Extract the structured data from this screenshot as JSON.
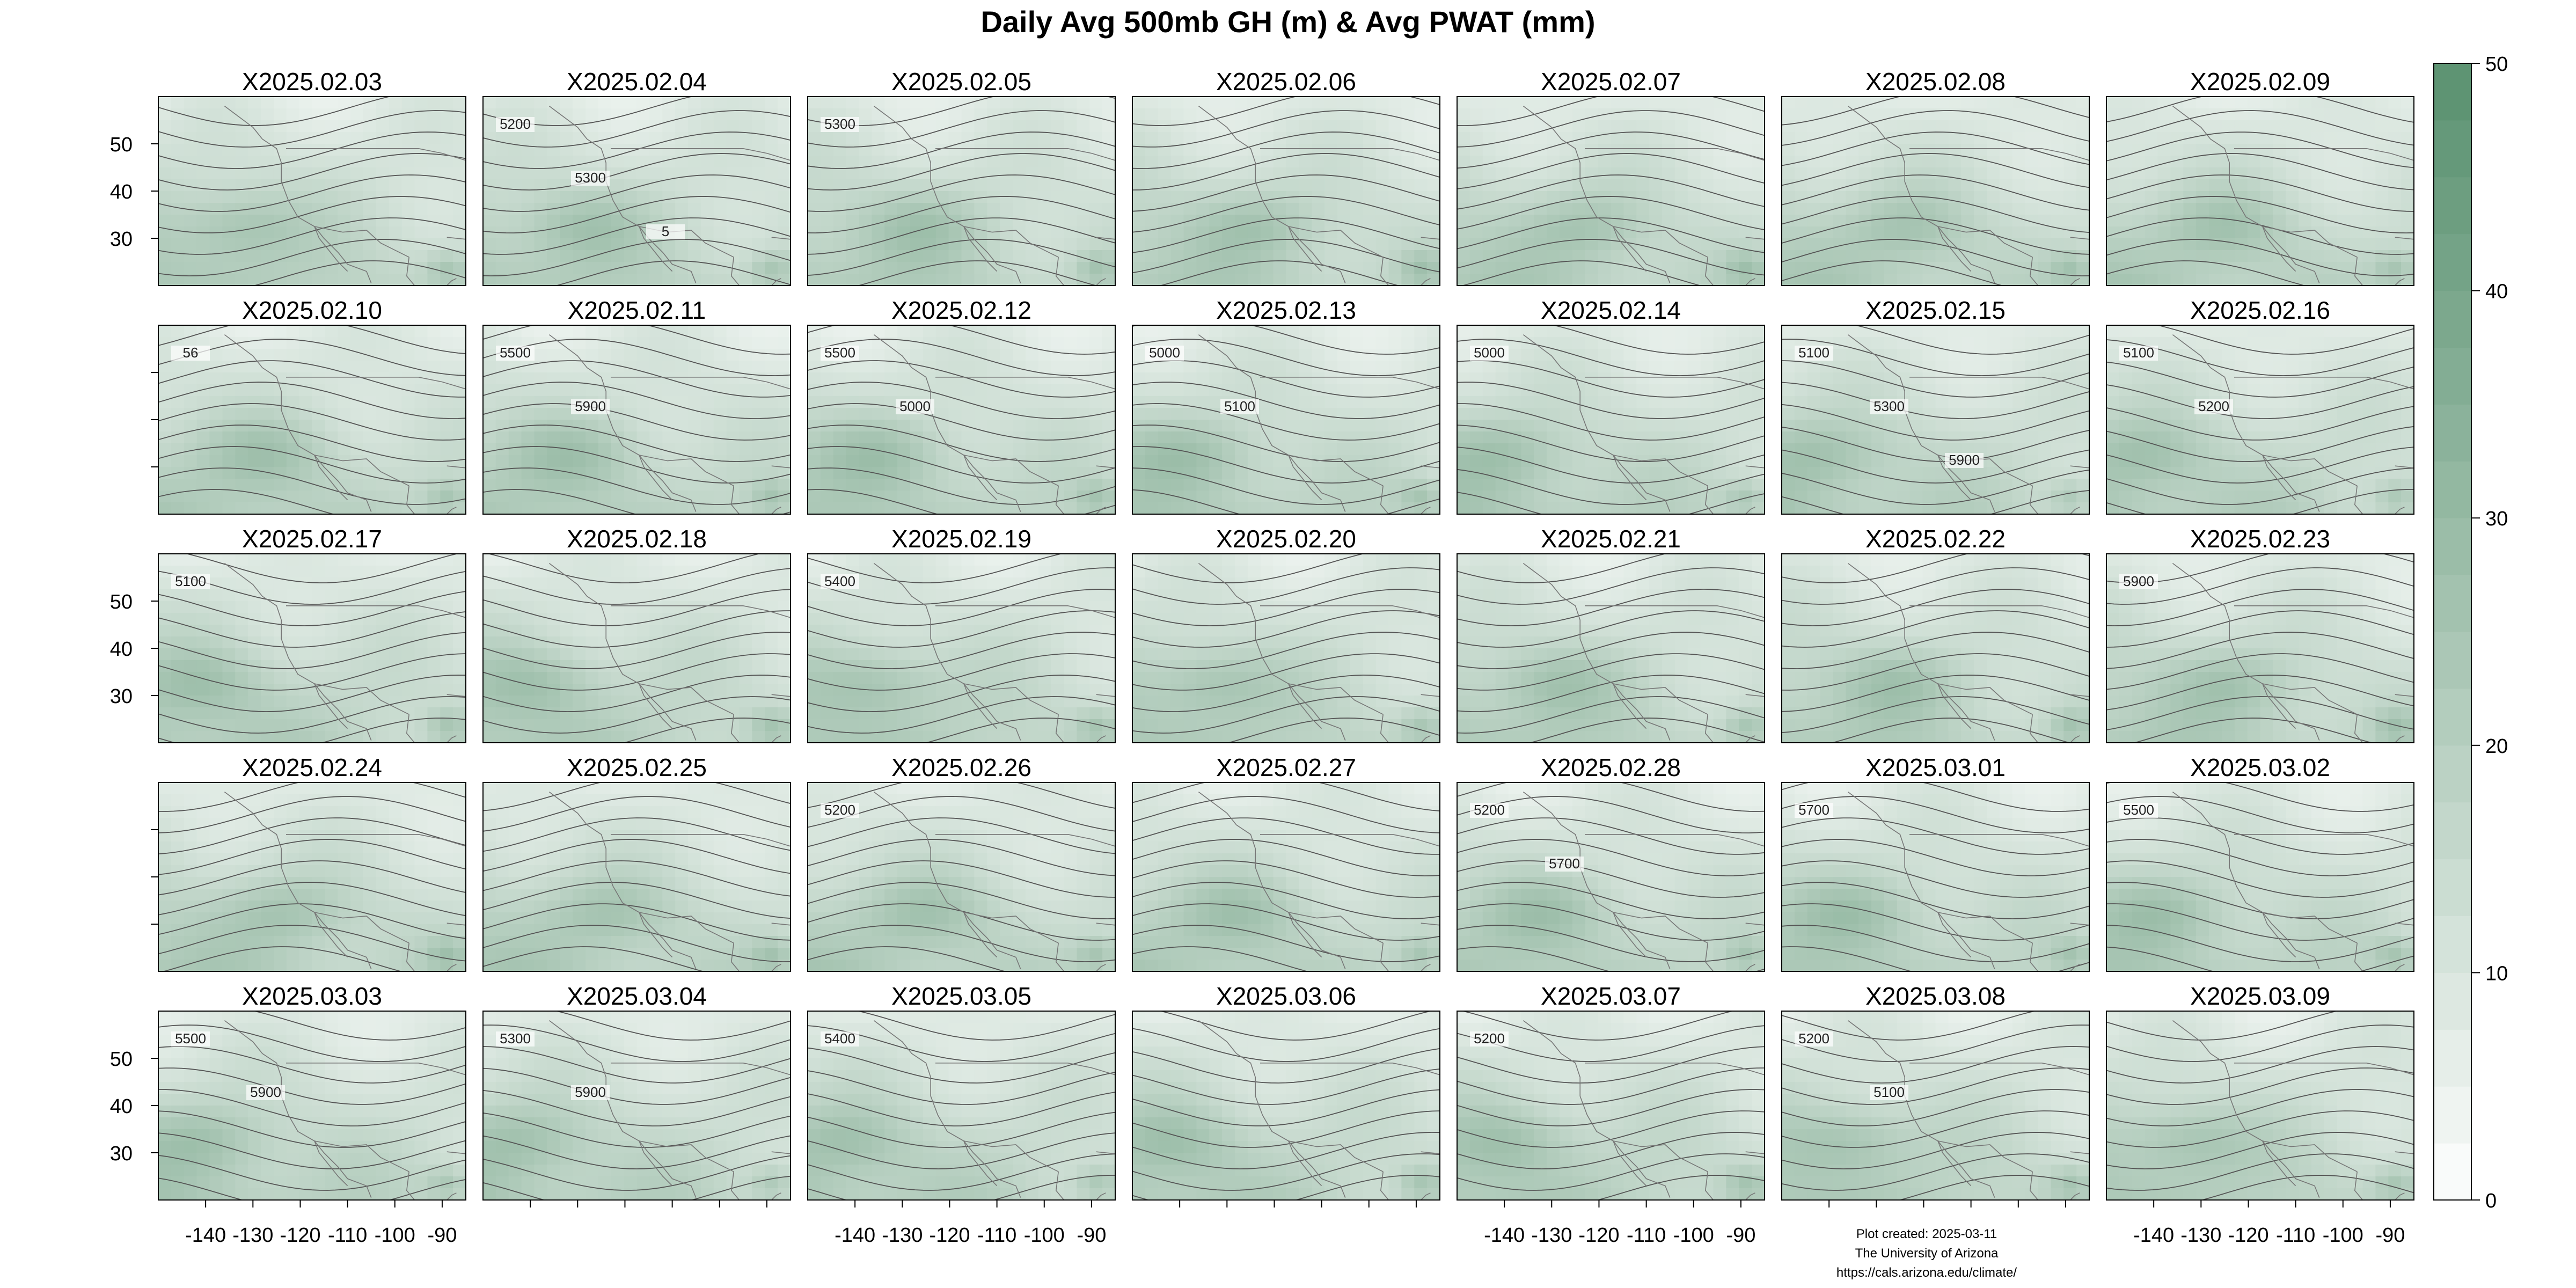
{
  "title": "Daily Avg 500mb GH (m) & Avg PWAT (mm)",
  "credits": [
    "Plot created: 2025-03-11",
    "The University of Arizona",
    "https://cals.arizona.edu/climate/"
  ],
  "chart_data": {
    "type": "heatmap",
    "layout": {
      "rows": 5,
      "cols": 7
    },
    "panels": [
      {
        "label": "X2025.02.03",
        "contour_labels": []
      },
      {
        "label": "X2025.02.04",
        "contour_labels": [
          "5200",
          "5300",
          "5"
        ]
      },
      {
        "label": "X2025.02.05",
        "contour_labels": [
          "5300"
        ]
      },
      {
        "label": "X2025.02.06",
        "contour_labels": []
      },
      {
        "label": "X2025.02.07",
        "contour_labels": []
      },
      {
        "label": "X2025.02.08",
        "contour_labels": []
      },
      {
        "label": "X2025.02.09",
        "contour_labels": []
      },
      {
        "label": "X2025.02.10",
        "contour_labels": [
          "56"
        ]
      },
      {
        "label": "X2025.02.11",
        "contour_labels": [
          "5500",
          "5900"
        ]
      },
      {
        "label": "X2025.02.12",
        "contour_labels": [
          "5500",
          "5000"
        ]
      },
      {
        "label": "X2025.02.13",
        "contour_labels": [
          "5000",
          "5100"
        ]
      },
      {
        "label": "X2025.02.14",
        "contour_labels": [
          "5000"
        ]
      },
      {
        "label": "X2025.02.15",
        "contour_labels": [
          "5100",
          "5300",
          "5900"
        ]
      },
      {
        "label": "X2025.02.16",
        "contour_labels": [
          "5100",
          "5200"
        ]
      },
      {
        "label": "X2025.02.17",
        "contour_labels": [
          "5100"
        ]
      },
      {
        "label": "X2025.02.18",
        "contour_labels": []
      },
      {
        "label": "X2025.02.19",
        "contour_labels": [
          "5400"
        ]
      },
      {
        "label": "X2025.02.20",
        "contour_labels": []
      },
      {
        "label": "X2025.02.21",
        "contour_labels": []
      },
      {
        "label": "X2025.02.22",
        "contour_labels": []
      },
      {
        "label": "X2025.02.23",
        "contour_labels": [
          "5900"
        ]
      },
      {
        "label": "X2025.02.24",
        "contour_labels": []
      },
      {
        "label": "X2025.02.25",
        "contour_labels": []
      },
      {
        "label": "X2025.02.26",
        "contour_labels": [
          "5200"
        ]
      },
      {
        "label": "X2025.02.27",
        "contour_labels": []
      },
      {
        "label": "X2025.02.28",
        "contour_labels": [
          "5200",
          "5700"
        ]
      },
      {
        "label": "X2025.03.01",
        "contour_labels": [
          "5700"
        ]
      },
      {
        "label": "X2025.03.02",
        "contour_labels": [
          "5500"
        ]
      },
      {
        "label": "X2025.03.03",
        "contour_labels": [
          "5500",
          "5900"
        ]
      },
      {
        "label": "X2025.03.04",
        "contour_labels": [
          "5300",
          "5900"
        ]
      },
      {
        "label": "X2025.03.05",
        "contour_labels": [
          "5400"
        ]
      },
      {
        "label": "X2025.03.06",
        "contour_labels": []
      },
      {
        "label": "X2025.03.07",
        "contour_labels": [
          "5200"
        ]
      },
      {
        "label": "X2025.03.08",
        "contour_labels": [
          "5200",
          "5100"
        ]
      },
      {
        "label": "X2025.03.09",
        "contour_labels": []
      }
    ],
    "x_ticks": [
      -140,
      -130,
      -120,
      -110,
      -100,
      -90
    ],
    "x_tick_labels": [
      "-140",
      "-130",
      "-120",
      "-110",
      "-100",
      "-90"
    ],
    "xlim": [
      -150,
      -85
    ],
    "y_ticks": [
      30,
      40,
      50
    ],
    "y_tick_labels": [
      "30",
      "40",
      "50"
    ],
    "ylim": [
      20,
      60
    ],
    "x_labeled_cols": [
      0,
      2,
      4,
      6
    ],
    "y_labeled_rows": [
      0,
      2,
      4
    ],
    "colorbar": {
      "ticks": [
        0,
        10,
        20,
        30,
        40,
        50
      ],
      "tick_labels": [
        "0",
        "10",
        "20",
        "30",
        "40",
        "50"
      ],
      "range": [
        0,
        50
      ],
      "levels": 20
    },
    "colors": {
      "low": "#ffffff",
      "high": "#5a9270",
      "contour": "#555555",
      "coast": "#777777"
    }
  }
}
